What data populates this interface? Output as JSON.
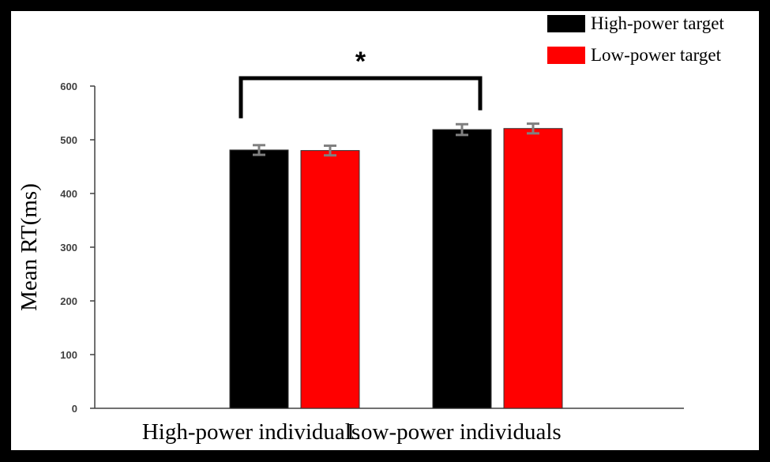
{
  "chart_data": {
    "type": "bar",
    "title": "",
    "xlabel": "",
    "ylabel": "Mean RT(ms)",
    "ylim": [
      0,
      600
    ],
    "yticks": [
      0,
      100,
      200,
      300,
      400,
      500,
      600
    ],
    "categories": [
      "High-power individuals",
      "Low-power individuals"
    ],
    "series": [
      {
        "name": "High-power target",
        "color": "#000000",
        "values": [
          481,
          519
        ],
        "errors": [
          9,
          10
        ]
      },
      {
        "name": "Low-power target",
        "color": "#ff0000",
        "values": [
          480,
          521
        ],
        "errors": [
          9,
          9
        ]
      }
    ],
    "legend_position": "top-right",
    "grid": false,
    "annotation": {
      "text": "*",
      "between": [
        "High-power individuals",
        "Low-power individuals"
      ],
      "y": 600
    }
  },
  "colors": {
    "frame": "#000000",
    "plot_background": "#ffffff",
    "axis": "#404040",
    "error_bar": "#808080"
  }
}
